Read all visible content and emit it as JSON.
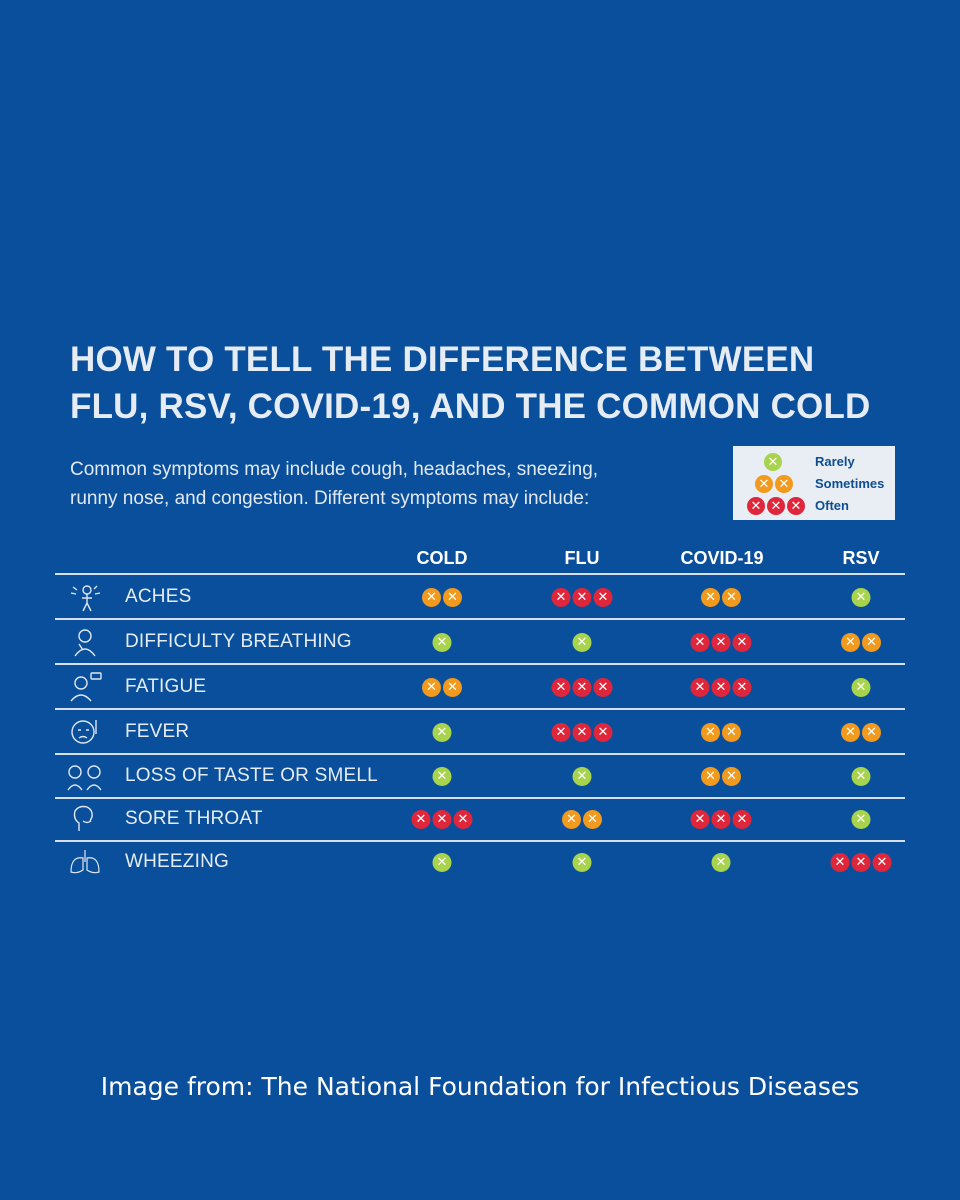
{
  "title_line1": "HOW TO TELL THE DIFFERENCE BETWEEN",
  "title_line2": "FLU, RSV, COVID-19, AND THE COMMON COLD",
  "subtitle_line1": "Common symptoms may include cough, headaches, sneezing,",
  "subtitle_line2": "runny nose, and congestion. Different symptoms may include:",
  "legend": [
    {
      "label": "Rarely",
      "level": 1
    },
    {
      "label": "Sometimes",
      "level": 2
    },
    {
      "label": "Often",
      "level": 3
    }
  ],
  "colors": {
    "background": "#0a4f9c",
    "rarely": "#a8d34c",
    "sometimes": "#f29a1d",
    "often": "#e0263a"
  },
  "columns": [
    "COLD",
    "FLU",
    "COVID-19",
    "RSV"
  ],
  "rows": [
    {
      "label": "ACHES",
      "icon": "aches-icon",
      "values": [
        2,
        3,
        2,
        1
      ]
    },
    {
      "label": "DIFFICULTY BREATHING",
      "icon": "breathing-icon",
      "values": [
        1,
        1,
        3,
        2
      ]
    },
    {
      "label": "FATIGUE",
      "icon": "fatigue-icon",
      "values": [
        2,
        3,
        3,
        1
      ]
    },
    {
      "label": "FEVER",
      "icon": "fever-icon",
      "values": [
        1,
        3,
        2,
        2
      ]
    },
    {
      "label": "LOSS OF TASTE OR SMELL",
      "icon": "taste-smell-icon",
      "values": [
        1,
        1,
        2,
        1
      ]
    },
    {
      "label": "SORE THROAT",
      "icon": "sore-throat-icon",
      "values": [
        3,
        2,
        3,
        1
      ]
    },
    {
      "label": "WHEEZING",
      "icon": "lungs-icon",
      "values": [
        1,
        1,
        1,
        3
      ]
    }
  ],
  "footer": "Image from: The National Foundation for Infectious Diseases"
}
